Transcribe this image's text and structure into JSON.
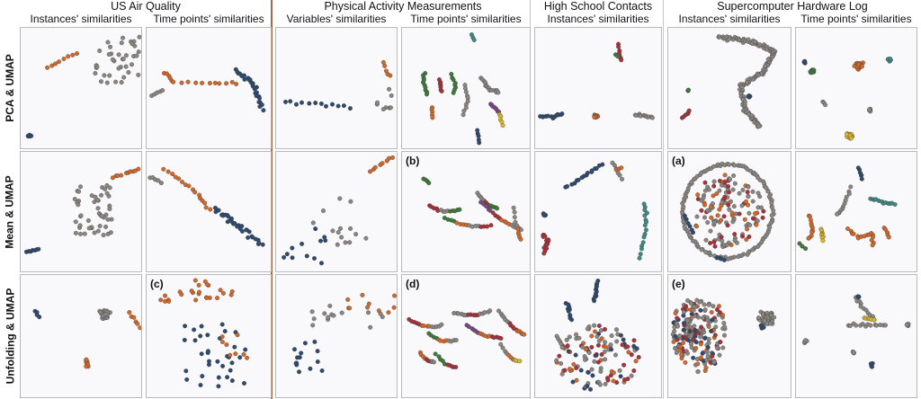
{
  "groups": [
    {
      "title": "US Air Quality",
      "columns": [
        "Instances' similarities",
        "Time points' similarities"
      ]
    },
    {
      "title": "Physical Activity Measurements",
      "columns": [
        "Variables' similarities",
        "Time points' similarities"
      ]
    },
    {
      "title": "High School Contacts",
      "columns": [
        "Instances' similarities"
      ]
    },
    {
      "title": "Supercomputer Hardware Log",
      "columns": [
        "Instances' similarities",
        "Time points' similarities"
      ]
    }
  ],
  "rows": [
    "PCA & UMAP",
    "Mean & UMAP",
    "Unfolding & UMAP"
  ],
  "panel_tags": {
    "p13": "(b)",
    "p15": "(a)",
    "p21": "(c)",
    "p23": "(d)",
    "p25": "(e)"
  },
  "colors": {
    "blue": "#2e4a6e",
    "orange": "#d2682a",
    "gray": "#8c8682",
    "green": "#3e7a3b",
    "red": "#a8323a",
    "purple": "#7b4a86",
    "teal": "#3f8a84",
    "yellow": "#d9b52b",
    "brown": "#8a5a3a"
  }
}
